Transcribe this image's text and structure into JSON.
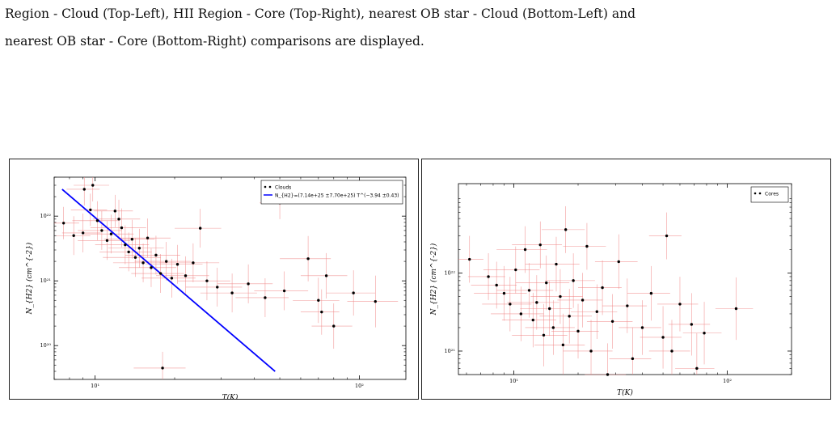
{
  "caption": {
    "line1": "Region - Cloud (Top-Left), HII Region - Core (Top-Right), nearest OB star - Cloud (Bottom-Left) and",
    "line2": "nearest OB star - Core (Bottom-Right) comparisons are displayed."
  },
  "chart_data": [
    {
      "type": "scatter",
      "title": "",
      "xlabel": "T(K)",
      "ylabel": "N_{H2} (cm^{-2})",
      "xscale": "log",
      "yscale": "log",
      "xlim": [
        7,
        150
      ],
      "ylim": [
        3e+19,
        4e+22
      ],
      "xticks": [
        {
          "value": 10,
          "label": "10¹"
        },
        {
          "value": 100,
          "label": "10²"
        }
      ],
      "yticks": [
        {
          "value": 1e+20,
          "label": "10²⁰"
        },
        {
          "value": 1e+21,
          "label": "10²¹"
        },
        {
          "value": 1e+22,
          "label": "10²²"
        }
      ],
      "legend": {
        "position": "top-right",
        "entries": [
          {
            "label": "Clouds",
            "marker": "point",
            "color": "#000000"
          },
          {
            "label": "N_{H2}=(7.14e+25 ±7.70e+25) T^(−3.94 ±0.43)",
            "marker": "line",
            "color": "#0000ff"
          }
        ]
      },
      "series": [
        {
          "name": "Clouds",
          "color": "#000000",
          "error_color": "#f08080",
          "points": [
            {
              "x": 9.8,
              "y": 3e+22,
              "xerr": 1.5,
              "yerr": 0.25
            },
            {
              "x": 9.1,
              "y": 2.6e+22,
              "xerr": 1.3,
              "yerr": 0.25
            },
            {
              "x": 7.6,
              "y": 7.8e+21,
              "xerr": 1.1,
              "yerr": 0.25
            },
            {
              "x": 8.3,
              "y": 5e+21,
              "xerr": 1.3,
              "yerr": 0.3
            },
            {
              "x": 9.0,
              "y": 5.5e+21,
              "xerr": 1.5,
              "yerr": 0.3
            },
            {
              "x": 9.6,
              "y": 1.25e+22,
              "xerr": 1.5,
              "yerr": 0.25
            },
            {
              "x": 10.2,
              "y": 8.5e+21,
              "xerr": 2.0,
              "yerr": 0.3
            },
            {
              "x": 10.6,
              "y": 6e+21,
              "xerr": 2.0,
              "yerr": 0.3
            },
            {
              "x": 11.1,
              "y": 4.2e+21,
              "xerr": 2.5,
              "yerr": 0.3
            },
            {
              "x": 11.5,
              "y": 5.3e+21,
              "xerr": 2.5,
              "yerr": 0.3
            },
            {
              "x": 11.9,
              "y": 1.2e+22,
              "xerr": 2.0,
              "yerr": 0.25
            },
            {
              "x": 12.3,
              "y": 9e+21,
              "xerr": 2.5,
              "yerr": 0.3
            },
            {
              "x": 12.6,
              "y": 6.6e+21,
              "xerr": 3.0,
              "yerr": 0.3
            },
            {
              "x": 13.0,
              "y": 3.6e+21,
              "xerr": 3.0,
              "yerr": 0.3
            },
            {
              "x": 13.4,
              "y": 2.8e+21,
              "xerr": 3.0,
              "yerr": 0.3
            },
            {
              "x": 13.8,
              "y": 4.4e+21,
              "xerr": 3.0,
              "yerr": 0.3
            },
            {
              "x": 14.2,
              "y": 2.3e+21,
              "xerr": 3.5,
              "yerr": 0.3
            },
            {
              "x": 14.7,
              "y": 3.2e+21,
              "xerr": 3.5,
              "yerr": 0.3
            },
            {
              "x": 15.2,
              "y": 1.9e+21,
              "xerr": 3.5,
              "yerr": 0.3
            },
            {
              "x": 15.8,
              "y": 4.6e+21,
              "xerr": 3.5,
              "yerr": 0.3
            },
            {
              "x": 16.3,
              "y": 1.6e+21,
              "xerr": 4.0,
              "yerr": 0.3
            },
            {
              "x": 17.0,
              "y": 2.5e+21,
              "xerr": 4.0,
              "yerr": 0.3
            },
            {
              "x": 17.7,
              "y": 1.3e+21,
              "xerr": 4.0,
              "yerr": 0.3
            },
            {
              "x": 18.6,
              "y": 2e+21,
              "xerr": 4.5,
              "yerr": 0.3
            },
            {
              "x": 19.5,
              "y": 1.1e+21,
              "xerr": 4.5,
              "yerr": 0.3
            },
            {
              "x": 20.5,
              "y": 1.8e+21,
              "xerr": 5.0,
              "yerr": 0.3
            },
            {
              "x": 22.0,
              "y": 1.2e+21,
              "xerr": 5.0,
              "yerr": 0.3
            },
            {
              "x": 23.5,
              "y": 1.9e+21,
              "xerr": 6.0,
              "yerr": 0.3
            },
            {
              "x": 25.0,
              "y": 6.5e+21,
              "xerr": 5.0,
              "yerr": 0.3
            },
            {
              "x": 26.5,
              "y": 1e+21,
              "xerr": 6.0,
              "yerr": 0.3
            },
            {
              "x": 29.0,
              "y": 8e+20,
              "xerr": 7.0,
              "yerr": 0.3
            },
            {
              "x": 33.0,
              "y": 6.5e+20,
              "xerr": 8.0,
              "yerr": 0.3
            },
            {
              "x": 38.0,
              "y": 9e+20,
              "xerr": 9.0,
              "yerr": 0.3
            },
            {
              "x": 44.0,
              "y": 5.5e+20,
              "xerr": 10.0,
              "yerr": 0.3
            },
            {
              "x": 50.0,
              "y": 1.6e+22,
              "xerr": 8.0,
              "yerr": 0.25
            },
            {
              "x": 52.0,
              "y": 7e+20,
              "xerr": 12.0,
              "yerr": 0.3
            },
            {
              "x": 64.0,
              "y": 2.2e+21,
              "xerr": 14.0,
              "yerr": 0.35
            },
            {
              "x": 70.0,
              "y": 5e+20,
              "xerr": 14.0,
              "yerr": 0.35
            },
            {
              "x": 72.0,
              "y": 3.3e+20,
              "xerr": 12.0,
              "yerr": 0.35
            },
            {
              "x": 75.0,
              "y": 1.2e+21,
              "xerr": 15.0,
              "yerr": 0.35
            },
            {
              "x": 80.0,
              "y": 2e+20,
              "xerr": 14.0,
              "yerr": 0.35
            },
            {
              "x": 95.0,
              "y": 6.5e+20,
              "xerr": 20.0,
              "yerr": 0.35
            },
            {
              "x": 115.0,
              "y": 4.8e+20,
              "xerr": 25.0,
              "yerr": 0.4
            },
            {
              "x": 18.0,
              "y": 4.5e+19,
              "xerr": 4.0,
              "yerr": 0.25
            }
          ]
        },
        {
          "name": "N_{H2}=(7.14e+25 ±7.70e+25) T^(−3.94 ±0.43)",
          "color": "#0000ff",
          "line": {
            "x": [
              7.5,
              48
            ],
            "y": [
              2.6e+22,
              4e+19
            ]
          }
        }
      ]
    },
    {
      "type": "scatter",
      "title": "",
      "xlabel": "T(K)",
      "ylabel": "N_{H2} (cm^{-2})",
      "xscale": "log",
      "yscale": "log",
      "xlim": [
        5.5,
        200
      ],
      "ylim": [
        5e+20,
        1.4e+23
      ],
      "xticks": [
        {
          "value": 10,
          "label": "10¹"
        },
        {
          "value": 100,
          "label": "10²"
        }
      ],
      "yticks": [
        {
          "value": 1e+21,
          "label": "10²¹"
        },
        {
          "value": 1e+22,
          "label": "10²²"
        }
      ],
      "legend": {
        "position": "top-right",
        "entries": [
          {
            "label": "Cores",
            "marker": "point",
            "color": "#000000"
          }
        ]
      },
      "series": [
        {
          "name": "Cores",
          "color": "#000000",
          "error_color": "#f08080",
          "points": [
            {
              "x": 6.2,
              "y": 1.5e+22,
              "xerr": 1.0,
              "yerr": 0.3
            },
            {
              "x": 7.6,
              "y": 9e+21,
              "xerr": 1.5,
              "yerr": 0.3
            },
            {
              "x": 8.3,
              "y": 7e+21,
              "xerr": 2.0,
              "yerr": 0.3
            },
            {
              "x": 9.0,
              "y": 5.5e+21,
              "xerr": 2.5,
              "yerr": 0.35
            },
            {
              "x": 9.6,
              "y": 4e+21,
              "xerr": 2.5,
              "yerr": 0.35
            },
            {
              "x": 10.2,
              "y": 1.1e+22,
              "xerr": 3.0,
              "yerr": 0.3
            },
            {
              "x": 10.8,
              "y": 3e+21,
              "xerr": 3.0,
              "yerr": 0.35
            },
            {
              "x": 11.3,
              "y": 2e+22,
              "xerr": 3.0,
              "yerr": 0.3
            },
            {
              "x": 11.8,
              "y": 6e+21,
              "xerr": 3.5,
              "yerr": 0.35
            },
            {
              "x": 12.3,
              "y": 2.5e+21,
              "xerr": 3.5,
              "yerr": 0.35
            },
            {
              "x": 12.8,
              "y": 4.2e+21,
              "xerr": 3.5,
              "yerr": 0.35
            },
            {
              "x": 13.3,
              "y": 2.3e+22,
              "xerr": 3.5,
              "yerr": 0.3
            },
            {
              "x": 13.8,
              "y": 1.6e+21,
              "xerr": 4.0,
              "yerr": 0.4
            },
            {
              "x": 14.2,
              "y": 7.5e+21,
              "xerr": 4.0,
              "yerr": 0.35
            },
            {
              "x": 14.7,
              "y": 3.5e+21,
              "xerr": 4.0,
              "yerr": 0.35
            },
            {
              "x": 15.3,
              "y": 2e+21,
              "xerr": 4.0,
              "yerr": 0.35
            },
            {
              "x": 15.8,
              "y": 1.3e+22,
              "xerr": 4.5,
              "yerr": 0.35
            },
            {
              "x": 16.5,
              "y": 5e+21,
              "xerr": 4.5,
              "yerr": 0.35
            },
            {
              "x": 17.0,
              "y": 1.2e+21,
              "xerr": 4.5,
              "yerr": 0.4
            },
            {
              "x": 17.5,
              "y": 3.6e+22,
              "xerr": 4.0,
              "yerr": 0.3
            },
            {
              "x": 18.2,
              "y": 2.8e+21,
              "xerr": 5.0,
              "yerr": 0.35
            },
            {
              "x": 19.0,
              "y": 8e+21,
              "xerr": 5.0,
              "yerr": 0.35
            },
            {
              "x": 20.0,
              "y": 1.8e+21,
              "xerr": 5.0,
              "yerr": 0.35
            },
            {
              "x": 21.0,
              "y": 4.5e+21,
              "xerr": 5.0,
              "yerr": 0.35
            },
            {
              "x": 22.0,
              "y": 2.2e+22,
              "xerr": 5.0,
              "yerr": 0.3
            },
            {
              "x": 23.0,
              "y": 1e+21,
              "xerr": 6.0,
              "yerr": 0.4
            },
            {
              "x": 24.5,
              "y": 3.2e+21,
              "xerr": 6.0,
              "yerr": 0.35
            },
            {
              "x": 26.0,
              "y": 6.5e+21,
              "xerr": 6.0,
              "yerr": 0.35
            },
            {
              "x": 27.5,
              "y": 5e+20,
              "xerr": 6.0,
              "yerr": 0.4
            },
            {
              "x": 29.0,
              "y": 2.4e+21,
              "xerr": 7.0,
              "yerr": 0.35
            },
            {
              "x": 31.0,
              "y": 1.4e+22,
              "xerr": 7.0,
              "yerr": 0.35
            },
            {
              "x": 34.0,
              "y": 3.8e+21,
              "xerr": 8.0,
              "yerr": 0.35
            },
            {
              "x": 36.0,
              "y": 8e+20,
              "xerr": 8.0,
              "yerr": 0.4
            },
            {
              "x": 40.0,
              "y": 2e+21,
              "xerr": 9.0,
              "yerr": 0.35
            },
            {
              "x": 44.0,
              "y": 5.5e+21,
              "xerr": 10.0,
              "yerr": 0.35
            },
            {
              "x": 50.0,
              "y": 1.5e+21,
              "xerr": 11.0,
              "yerr": 0.4
            },
            {
              "x": 52.0,
              "y": 3e+22,
              "xerr": 9.0,
              "yerr": 0.3
            },
            {
              "x": 55.0,
              "y": 1e+21,
              "xerr": 12.0,
              "yerr": 0.4
            },
            {
              "x": 60.0,
              "y": 4e+21,
              "xerr": 13.0,
              "yerr": 0.35
            },
            {
              "x": 68.0,
              "y": 2.2e+21,
              "xerr": 15.0,
              "yerr": 0.4
            },
            {
              "x": 72.0,
              "y": 6e+20,
              "xerr": 15.0,
              "yerr": 0.45
            },
            {
              "x": 78.0,
              "y": 1.7e+21,
              "xerr": 16.0,
              "yerr": 0.4
            },
            {
              "x": 110.0,
              "y": 3.5e+21,
              "xerr": 22.0,
              "yerr": 0.4
            }
          ]
        }
      ]
    }
  ]
}
